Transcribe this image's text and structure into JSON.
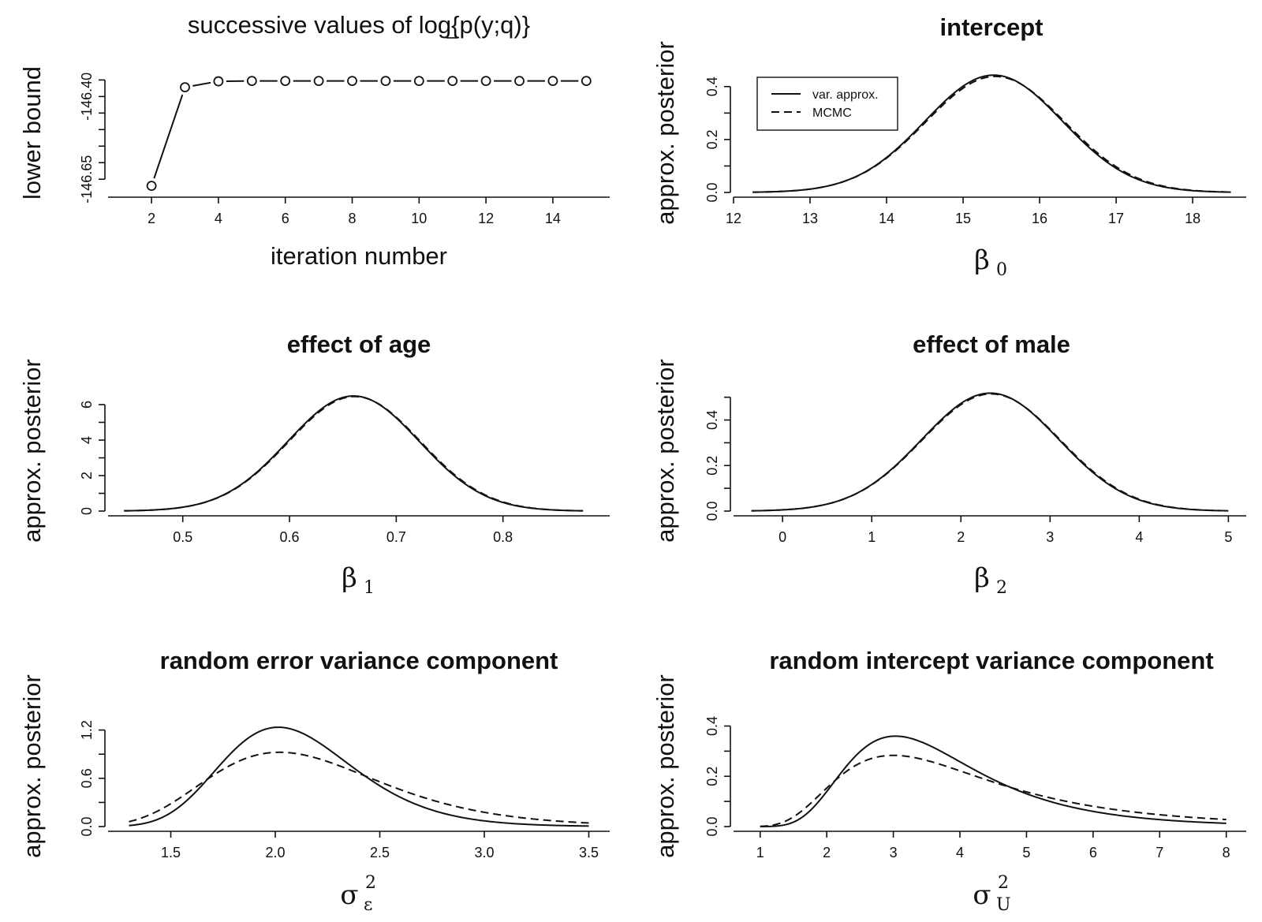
{
  "chart_data": [
    {
      "type": "line",
      "title": "successive values of log{p(y;q)}",
      "xlabel": "iteration number",
      "ylabel": "lower bound",
      "xlim": [
        0.7,
        15.7
      ],
      "ylim": [
        -146.69,
        -146.33
      ],
      "xticks": [
        2,
        4,
        6,
        8,
        10,
        12,
        14
      ],
      "yticks": [
        -146.65,
        -146.6,
        -146.55,
        -146.5,
        -146.45,
        -146.4,
        -146.35
      ],
      "ytick_labels": [
        "-146.65",
        "-146.40"
      ],
      "x": [
        2,
        3,
        4,
        5,
        6,
        7,
        8,
        9,
        10,
        11,
        12,
        13,
        14,
        15
      ],
      "values": [
        -146.67,
        -146.372,
        -146.354,
        -146.353,
        -146.353,
        -146.353,
        -146.353,
        -146.353,
        -146.353,
        -146.353,
        -146.353,
        -146.353,
        -146.353,
        -146.353
      ]
    },
    {
      "type": "line",
      "title": "intercept",
      "xlabel_symbol": "β",
      "xlabel_sub": "0",
      "xlabel_sup": "",
      "ylabel": "approx. posterior",
      "xlim": [
        12,
        18.7
      ],
      "ylim": [
        0,
        0.45
      ],
      "xticks": [
        12,
        13,
        14,
        15,
        16,
        17,
        18
      ],
      "yticks": [
        0.0,
        0.1,
        0.2,
        0.3,
        0.4
      ],
      "ytick_labels": [
        "0.0",
        "0.2",
        "0.4"
      ],
      "legend": {
        "position": "top-left",
        "entries": [
          "var. approx.",
          "MCMC"
        ]
      },
      "series": [
        {
          "name": "var. approx.",
          "dist": "normal",
          "params": {
            "mu": 15.4,
            "sd": 0.9
          },
          "range": [
            12.25,
            18.5
          ]
        },
        {
          "name": "MCMC",
          "dist": "normal",
          "params": {
            "mu": 15.42,
            "sd": 0.91
          },
          "range": [
            12.25,
            18.5
          ]
        }
      ]
    },
    {
      "type": "line",
      "title": "effect of age",
      "xlabel_symbol": "β",
      "xlabel_sub": "1",
      "xlabel_sup": "",
      "ylabel": "approx. posterior",
      "xlim": [
        0.43,
        0.9
      ],
      "ylim": [
        0,
        6.8
      ],
      "xticks": [
        0.5,
        0.6,
        0.7,
        0.8
      ],
      "yticks": [
        0,
        1,
        2,
        3,
        4,
        5,
        6
      ],
      "ytick_labels": [
        "0",
        "2",
        "4",
        "6"
      ],
      "series": [
        {
          "name": "var. approx.",
          "dist": "normal",
          "params": {
            "mu": 0.66,
            "sd": 0.0615
          },
          "range": [
            0.445,
            0.875
          ]
        },
        {
          "name": "MCMC",
          "dist": "normal",
          "params": {
            "mu": 0.661,
            "sd": 0.0618
          },
          "range": [
            0.445,
            0.875
          ]
        }
      ]
    },
    {
      "type": "line",
      "title": "effect of male",
      "xlabel_symbol": "β",
      "xlabel_sub": "2",
      "xlabel_sup": "",
      "ylabel": "approx. posterior",
      "xlim": [
        -0.55,
        5.2
      ],
      "ylim": [
        0,
        0.53
      ],
      "xticks": [
        0,
        1,
        2,
        3,
        4,
        5
      ],
      "yticks": [
        0.0,
        0.1,
        0.2,
        0.3,
        0.4,
        0.5
      ],
      "ytick_labels": [
        "0.0",
        "0.2",
        "0.4"
      ],
      "series": [
        {
          "name": "var. approx.",
          "dist": "normal",
          "params": {
            "mu": 2.33,
            "sd": 0.77
          },
          "range": [
            -0.35,
            5.0
          ]
        },
        {
          "name": "MCMC",
          "dist": "normal",
          "params": {
            "mu": 2.34,
            "sd": 0.775
          },
          "range": [
            -0.35,
            5.0
          ]
        }
      ]
    },
    {
      "type": "line",
      "title": "random error variance component",
      "xlabel_symbol": "σ",
      "xlabel_sub": "ε",
      "xlabel_sup": "2",
      "ylabel": "approx. posterior",
      "xlim": [
        1.2,
        3.6
      ],
      "ylim": [
        0,
        1.5
      ],
      "xticks": [
        1.5,
        2.0,
        2.5,
        3.0,
        3.5
      ],
      "xtick_labels": [
        "1.5",
        "2.0",
        "2.5",
        "3.0",
        "3.5"
      ],
      "yticks": [
        0.0,
        0.3,
        0.6,
        0.9,
        1.2
      ],
      "ytick_labels": [
        "0.0",
        "0.6",
        "1.2"
      ],
      "series": [
        {
          "name": "var. approx.",
          "dist": "invgamma",
          "params": {
            "shape": 40,
            "scale": 82.6
          },
          "range": [
            1.3,
            3.5
          ]
        },
        {
          "name": "MCMC",
          "dist": "invgamma",
          "params": {
            "shape": 23,
            "scale": 48.5
          },
          "range": [
            1.3,
            3.5
          ]
        }
      ]
    },
    {
      "type": "line",
      "title": "random intercept variance component",
      "xlabel_symbol": "σ",
      "xlabel_sub": "U",
      "xlabel_sup": "2",
      "ylabel": "approx. posterior",
      "xlim": [
        0.6,
        8.3
      ],
      "ylim": [
        0,
        0.48
      ],
      "xticks": [
        1,
        2,
        3,
        4,
        5,
        6,
        7,
        8
      ],
      "yticks": [
        0.0,
        0.1,
        0.2,
        0.3,
        0.4
      ],
      "ytick_labels": [
        "0.0",
        "0.2",
        "0.4"
      ],
      "series": [
        {
          "name": "var. approx.",
          "dist": "invgamma",
          "params": {
            "shape": 8.5,
            "scale": 28.8
          },
          "range": [
            1.0,
            8.0
          ]
        },
        {
          "name": "MCMC",
          "dist": "invgamma",
          "params": {
            "shape": 5.5,
            "scale": 19.5
          },
          "range": [
            1.0,
            8.0
          ]
        }
      ]
    }
  ]
}
